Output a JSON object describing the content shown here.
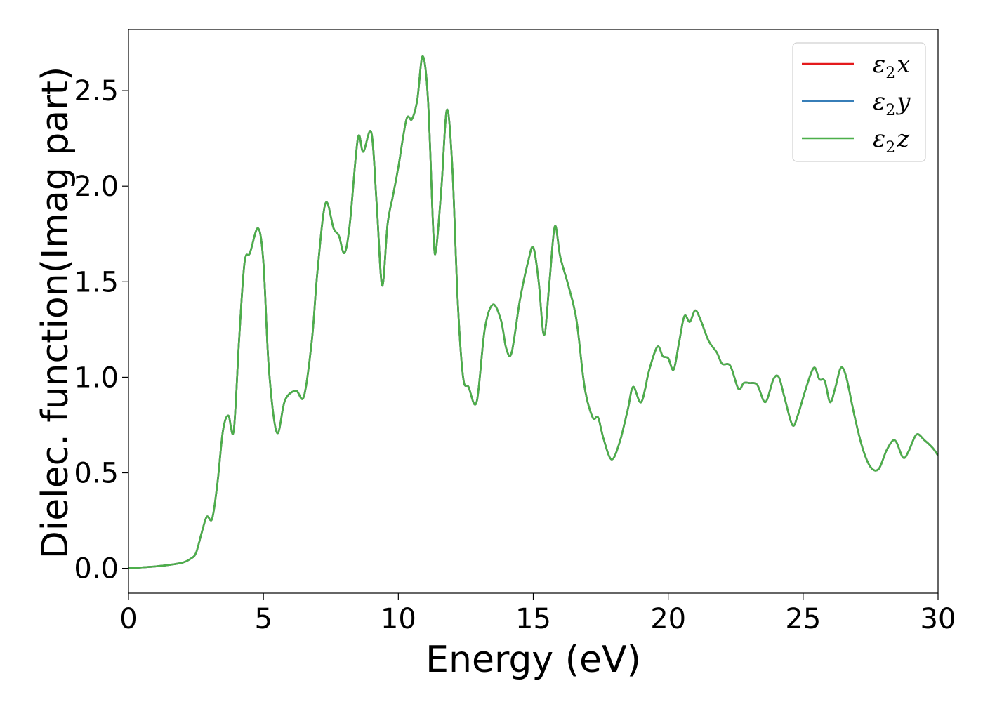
{
  "chart_data": {
    "type": "line",
    "xlabel": "Energy (eV)",
    "ylabel": "Dielec. function(Imag part)",
    "xlim": [
      0,
      30
    ],
    "ylim": [
      -0.13,
      2.82
    ],
    "xticks": [
      0,
      5,
      10,
      15,
      20,
      25,
      30
    ],
    "yticks": [
      0.0,
      0.5,
      1.0,
      1.5,
      2.0,
      2.5
    ],
    "xtick_labels": [
      "0",
      "5",
      "10",
      "15",
      "20",
      "25",
      "30"
    ],
    "ytick_labels": [
      "0.0",
      "0.5",
      "1.0",
      "1.5",
      "2.0",
      "2.5"
    ],
    "grid": false,
    "legend": "top-right",
    "x": [
      0,
      0.5,
      1,
      1.5,
      2,
      2.3,
      2.5,
      2.7,
      2.9,
      3.1,
      3.3,
      3.5,
      3.7,
      3.9,
      4.1,
      4.3,
      4.5,
      4.8,
      5.0,
      5.2,
      5.5,
      5.8,
      6.2,
      6.5,
      6.8,
      7.0,
      7.3,
      7.6,
      7.8,
      8.0,
      8.2,
      8.5,
      8.7,
      9.0,
      9.2,
      9.4,
      9.6,
      9.8,
      10.0,
      10.3,
      10.5,
      10.7,
      10.9,
      11.1,
      11.3,
      11.4,
      11.6,
      11.8,
      12.0,
      12.2,
      12.4,
      12.6,
      12.9,
      13.2,
      13.5,
      13.8,
      14.0,
      14.2,
      14.5,
      14.8,
      15.0,
      15.2,
      15.4,
      15.6,
      15.8,
      16.0,
      16.3,
      16.6,
      16.9,
      17.2,
      17.4,
      17.6,
      17.9,
      18.2,
      18.5,
      18.7,
      19.0,
      19.3,
      19.6,
      19.8,
      20.0,
      20.2,
      20.4,
      20.6,
      20.8,
      21.0,
      21.2,
      21.5,
      21.8,
      22.0,
      22.3,
      22.6,
      22.8,
      23.0,
      23.3,
      23.6,
      23.9,
      24.1,
      24.3,
      24.6,
      24.8,
      25.1,
      25.4,
      25.6,
      25.8,
      26.0,
      26.2,
      26.4,
      26.6,
      26.9,
      27.2,
      27.5,
      27.8,
      28.1,
      28.4,
      28.7,
      28.9,
      29.2,
      29.5,
      29.8,
      30.0
    ],
    "series": [
      {
        "name": "ε₂x",
        "legend_text": "ε",
        "legend_sub": "2",
        "legend_var": "x",
        "color": "#e41a1c",
        "y": [
          0.0,
          0.005,
          0.01,
          0.018,
          0.03,
          0.05,
          0.08,
          0.18,
          0.27,
          0.26,
          0.45,
          0.72,
          0.8,
          0.72,
          1.2,
          1.6,
          1.65,
          1.78,
          1.6,
          1.05,
          0.71,
          0.88,
          0.93,
          0.9,
          1.2,
          1.55,
          1.91,
          1.78,
          1.74,
          1.65,
          1.8,
          2.25,
          2.18,
          2.28,
          1.9,
          1.48,
          1.8,
          1.95,
          2.1,
          2.35,
          2.35,
          2.45,
          2.68,
          2.45,
          1.75,
          1.67,
          2.0,
          2.4,
          2.1,
          1.4,
          1.0,
          0.95,
          0.87,
          1.25,
          1.38,
          1.3,
          1.15,
          1.13,
          1.4,
          1.6,
          1.68,
          1.5,
          1.22,
          1.5,
          1.79,
          1.63,
          1.48,
          1.3,
          0.95,
          0.79,
          0.79,
          0.68,
          0.57,
          0.66,
          0.83,
          0.95,
          0.87,
          1.04,
          1.16,
          1.11,
          1.1,
          1.04,
          1.18,
          1.32,
          1.29,
          1.35,
          1.3,
          1.19,
          1.13,
          1.07,
          1.06,
          0.94,
          0.97,
          0.97,
          0.96,
          0.87,
          0.99,
          1.0,
          0.9,
          0.75,
          0.8,
          0.94,
          1.05,
          0.99,
          0.98,
          0.87,
          0.95,
          1.05,
          1.0,
          0.8,
          0.63,
          0.53,
          0.52,
          0.62,
          0.67,
          0.58,
          0.61,
          0.7,
          0.67,
          0.63,
          0.59
        ]
      },
      {
        "name": "ε₂y",
        "legend_text": "ε",
        "legend_sub": "2",
        "legend_var": "y",
        "color": "#377eb8",
        "y": [
          0.0,
          0.005,
          0.01,
          0.018,
          0.03,
          0.05,
          0.08,
          0.18,
          0.27,
          0.26,
          0.45,
          0.72,
          0.8,
          0.72,
          1.2,
          1.6,
          1.65,
          1.78,
          1.6,
          1.05,
          0.71,
          0.88,
          0.93,
          0.9,
          1.2,
          1.55,
          1.91,
          1.78,
          1.74,
          1.65,
          1.8,
          2.25,
          2.18,
          2.28,
          1.9,
          1.48,
          1.8,
          1.95,
          2.1,
          2.35,
          2.35,
          2.45,
          2.68,
          2.45,
          1.75,
          1.67,
          2.0,
          2.4,
          2.1,
          1.4,
          1.0,
          0.95,
          0.87,
          1.25,
          1.38,
          1.3,
          1.15,
          1.13,
          1.4,
          1.6,
          1.68,
          1.5,
          1.22,
          1.5,
          1.79,
          1.63,
          1.48,
          1.3,
          0.95,
          0.79,
          0.79,
          0.68,
          0.57,
          0.66,
          0.83,
          0.95,
          0.87,
          1.04,
          1.16,
          1.11,
          1.1,
          1.04,
          1.18,
          1.32,
          1.29,
          1.35,
          1.3,
          1.19,
          1.13,
          1.07,
          1.06,
          0.94,
          0.97,
          0.97,
          0.96,
          0.87,
          0.99,
          1.0,
          0.9,
          0.75,
          0.8,
          0.94,
          1.05,
          0.99,
          0.98,
          0.87,
          0.95,
          1.05,
          1.0,
          0.8,
          0.63,
          0.53,
          0.52,
          0.62,
          0.67,
          0.58,
          0.61,
          0.7,
          0.67,
          0.63,
          0.59
        ]
      },
      {
        "name": "ε₂z",
        "legend_text": "ε",
        "legend_sub": "2",
        "legend_var": "z",
        "color": "#4daf4a",
        "y": [
          0.0,
          0.005,
          0.01,
          0.018,
          0.03,
          0.05,
          0.08,
          0.18,
          0.27,
          0.26,
          0.45,
          0.72,
          0.8,
          0.72,
          1.2,
          1.6,
          1.65,
          1.78,
          1.6,
          1.05,
          0.71,
          0.88,
          0.93,
          0.9,
          1.2,
          1.55,
          1.91,
          1.78,
          1.74,
          1.65,
          1.8,
          2.25,
          2.18,
          2.28,
          1.9,
          1.48,
          1.8,
          1.95,
          2.1,
          2.35,
          2.35,
          2.45,
          2.68,
          2.45,
          1.75,
          1.67,
          2.0,
          2.4,
          2.1,
          1.4,
          1.0,
          0.95,
          0.87,
          1.25,
          1.38,
          1.3,
          1.15,
          1.13,
          1.4,
          1.6,
          1.68,
          1.5,
          1.22,
          1.5,
          1.79,
          1.63,
          1.48,
          1.3,
          0.95,
          0.79,
          0.79,
          0.68,
          0.57,
          0.66,
          0.83,
          0.95,
          0.87,
          1.04,
          1.16,
          1.11,
          1.1,
          1.04,
          1.18,
          1.32,
          1.29,
          1.35,
          1.3,
          1.19,
          1.13,
          1.07,
          1.06,
          0.94,
          0.97,
          0.97,
          0.96,
          0.87,
          0.99,
          1.0,
          0.9,
          0.75,
          0.8,
          0.94,
          1.05,
          0.99,
          0.98,
          0.87,
          0.95,
          1.05,
          1.0,
          0.8,
          0.63,
          0.53,
          0.52,
          0.62,
          0.67,
          0.58,
          0.61,
          0.7,
          0.67,
          0.63,
          0.59
        ]
      }
    ]
  }
}
